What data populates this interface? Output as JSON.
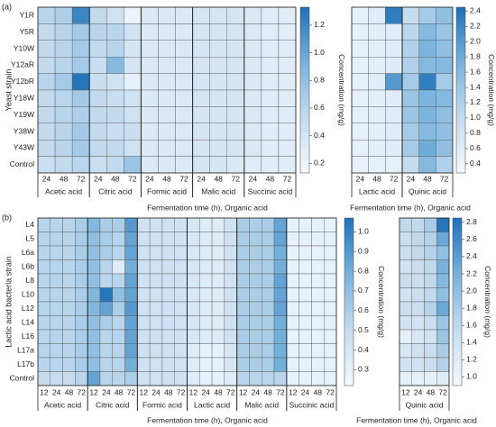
{
  "chart_data": [
    {
      "type": "heatmap",
      "panel": "(a)",
      "ylabel": "Yeast strain",
      "xlabel": "Fermentation time (h), Organic acid",
      "rows": [
        "Y1R",
        "Y5R",
        "Y10W",
        "Y12aR",
        "Y12bR",
        "Y18W",
        "Y19W",
        "Y38W",
        "Y43W",
        "Control"
      ],
      "groups": [
        {
          "name": "Acetic acid",
          "times": [
            24,
            48,
            72
          ]
        },
        {
          "name": "Citric acid",
          "times": [
            24,
            48,
            72
          ]
        },
        {
          "name": "Formic acid",
          "times": [
            24,
            48,
            72
          ]
        },
        {
          "name": "Malic acid",
          "times": [
            24,
            48,
            72
          ]
        },
        {
          "name": "Succinic acid",
          "times": [
            24,
            48,
            72
          ]
        }
      ],
      "values": [
        [
          0.6,
          0.65,
          1.2,
          0.55,
          0.45,
          0.2,
          0.35,
          0.35,
          0.35,
          0.4,
          0.4,
          0.4,
          0.35,
          0.3,
          0.3
        ],
        [
          0.55,
          0.6,
          0.7,
          0.6,
          0.6,
          0.45,
          0.35,
          0.35,
          0.35,
          0.4,
          0.4,
          0.4,
          0.35,
          0.3,
          0.3
        ],
        [
          0.55,
          0.6,
          0.7,
          0.55,
          0.6,
          0.4,
          0.35,
          0.35,
          0.35,
          0.4,
          0.4,
          0.4,
          0.35,
          0.3,
          0.3
        ],
        [
          0.55,
          0.6,
          0.7,
          0.5,
          0.85,
          0.4,
          0.35,
          0.35,
          0.35,
          0.4,
          0.4,
          0.4,
          0.35,
          0.3,
          0.3
        ],
        [
          0.6,
          0.7,
          1.3,
          0.5,
          0.45,
          0.25,
          0.35,
          0.35,
          0.35,
          0.4,
          0.4,
          0.4,
          0.35,
          0.3,
          0.3
        ],
        [
          0.55,
          0.6,
          0.7,
          0.55,
          0.5,
          0.45,
          0.35,
          0.35,
          0.35,
          0.4,
          0.4,
          0.4,
          0.35,
          0.3,
          0.3
        ],
        [
          0.55,
          0.6,
          0.65,
          0.55,
          0.55,
          0.45,
          0.35,
          0.35,
          0.35,
          0.4,
          0.4,
          0.4,
          0.35,
          0.3,
          0.3
        ],
        [
          0.55,
          0.6,
          0.7,
          0.55,
          0.5,
          0.5,
          0.35,
          0.35,
          0.35,
          0.4,
          0.4,
          0.4,
          0.35,
          0.3,
          0.3
        ],
        [
          0.55,
          0.6,
          0.7,
          0.55,
          0.55,
          0.45,
          0.35,
          0.35,
          0.35,
          0.4,
          0.4,
          0.4,
          0.35,
          0.3,
          0.3
        ],
        [
          0.5,
          0.55,
          0.6,
          0.5,
          0.55,
          0.75,
          0.35,
          0.35,
          0.35,
          0.4,
          0.4,
          0.35,
          0.3,
          0.3,
          0.3
        ]
      ],
      "colorbar_label": "Concentration (mg/g)",
      "clim": [
        0.13,
        1.33
      ],
      "cticks": [
        0.2,
        0.4,
        0.6,
        0.8,
        {
          "value": 1,
          "label": "1.0"
        },
        1.2
      ]
    },
    {
      "type": "heatmap",
      "xlabel": "Fermentation time (h), Organic acid",
      "groups": [
        {
          "name": "Lactic acid",
          "times": [
            24,
            48,
            72
          ]
        },
        {
          "name": "Quinic acid",
          "times": [
            24,
            48,
            72
          ]
        }
      ],
      "values": [
        [
          0.5,
          0.6,
          2.3,
          1.0,
          1.3,
          1.5
        ],
        [
          0.5,
          0.55,
          0.6,
          1.1,
          1.6,
          1.4
        ],
        [
          0.5,
          0.55,
          0.6,
          1.2,
          1.7,
          1.5
        ],
        [
          0.5,
          0.55,
          0.6,
          1.2,
          1.6,
          1.6
        ],
        [
          0.5,
          0.6,
          2.0,
          1.3,
          2.3,
          1.3
        ],
        [
          0.5,
          0.55,
          0.6,
          1.4,
          1.7,
          1.6
        ],
        [
          0.5,
          0.55,
          0.6,
          1.4,
          1.7,
          1.5
        ],
        [
          0.5,
          0.55,
          0.6,
          1.3,
          1.6,
          1.5
        ],
        [
          0.5,
          0.55,
          0.6,
          1.3,
          1.8,
          1.5
        ],
        [
          0.45,
          0.5,
          0.5,
          1.0,
          1.6,
          1.2
        ]
      ],
      "colorbar_label": "Concentration (mg/g)",
      "clim": [
        0.28,
        2.45
      ],
      "cticks": [
        0.4,
        0.6,
        0.8,
        {
          "value": 1,
          "label": "1.0"
        },
        1.2,
        1.4,
        1.6,
        1.8,
        {
          "value": 2,
          "label": "2.0"
        },
        2.2,
        2.4
      ]
    },
    {
      "type": "heatmap",
      "panel": "(b)",
      "ylabel": "Lactic acid bacteria strain",
      "xlabel": "Fermentation time (h), Organic acid",
      "rows": [
        "L4",
        "L5",
        "L6a",
        "L6b",
        "L8",
        "L10",
        "L12",
        "L14",
        "L16",
        "L17a",
        "L17b",
        "Control"
      ],
      "groups": [
        {
          "name": "Acetic acid",
          "times": [
            12,
            24,
            48,
            72
          ]
        },
        {
          "name": "Citric acid",
          "times": [
            12,
            24,
            48,
            72
          ]
        },
        {
          "name": "Formic acid",
          "times": [
            12,
            24,
            48,
            72
          ]
        },
        {
          "name": "Lactic acid",
          "times": [
            12,
            24,
            48,
            72
          ]
        },
        {
          "name": "Malic acid",
          "times": [
            12,
            24,
            48,
            72
          ]
        },
        {
          "name": "Succinic acid",
          "times": [
            12,
            24,
            48,
            72
          ]
        }
      ],
      "values": [
        [
          0.55,
          0.55,
          0.55,
          0.6,
          0.75,
          0.6,
          0.6,
          0.9,
          0.45,
          0.45,
          0.45,
          0.45,
          0.4,
          0.35,
          0.35,
          0.45,
          0.6,
          0.6,
          0.6,
          0.85,
          0.3,
          0.3,
          0.3,
          0.3
        ],
        [
          0.55,
          0.55,
          0.55,
          0.6,
          0.7,
          0.6,
          0.55,
          0.85,
          0.45,
          0.45,
          0.45,
          0.45,
          0.4,
          0.35,
          0.35,
          0.45,
          0.6,
          0.6,
          0.6,
          0.85,
          0.3,
          0.3,
          0.3,
          0.3
        ],
        [
          0.55,
          0.55,
          0.55,
          0.6,
          0.7,
          0.6,
          0.55,
          0.85,
          0.45,
          0.45,
          0.45,
          0.45,
          0.4,
          0.35,
          0.35,
          0.45,
          0.6,
          0.6,
          0.6,
          0.8,
          0.3,
          0.3,
          0.3,
          0.3
        ],
        [
          0.55,
          0.55,
          0.55,
          0.6,
          0.7,
          0.55,
          0.35,
          0.8,
          0.45,
          0.45,
          0.45,
          0.45,
          0.4,
          0.35,
          0.35,
          0.45,
          0.6,
          0.6,
          0.6,
          0.8,
          0.3,
          0.3,
          0.3,
          0.3
        ],
        [
          0.55,
          0.55,
          0.55,
          0.6,
          0.7,
          0.55,
          0.55,
          0.85,
          0.45,
          0.45,
          0.45,
          0.45,
          0.4,
          0.35,
          0.35,
          0.45,
          0.6,
          0.6,
          0.6,
          0.85,
          0.3,
          0.3,
          0.3,
          0.3
        ],
        [
          0.55,
          0.55,
          0.55,
          0.6,
          0.75,
          1.05,
          0.7,
          0.85,
          0.45,
          0.45,
          0.45,
          0.45,
          0.4,
          0.35,
          0.35,
          0.45,
          0.6,
          0.6,
          0.6,
          0.85,
          0.3,
          0.3,
          0.3,
          0.3
        ],
        [
          0.55,
          0.55,
          0.55,
          0.6,
          0.75,
          0.85,
          0.6,
          0.9,
          0.45,
          0.45,
          0.45,
          0.45,
          0.4,
          0.35,
          0.35,
          0.45,
          0.6,
          0.6,
          0.6,
          0.85,
          0.3,
          0.3,
          0.3,
          0.3
        ],
        [
          0.55,
          0.55,
          0.55,
          0.6,
          0.7,
          0.6,
          0.55,
          0.85,
          0.45,
          0.45,
          0.45,
          0.45,
          0.4,
          0.35,
          0.35,
          0.45,
          0.6,
          0.6,
          0.6,
          0.8,
          0.3,
          0.3,
          0.3,
          0.3
        ],
        [
          0.55,
          0.55,
          0.55,
          0.6,
          0.7,
          0.55,
          0.55,
          0.85,
          0.45,
          0.45,
          0.45,
          0.45,
          0.4,
          0.35,
          0.35,
          0.45,
          0.6,
          0.6,
          0.6,
          0.8,
          0.3,
          0.3,
          0.3,
          0.3
        ],
        [
          0.55,
          0.55,
          0.55,
          0.6,
          0.7,
          0.55,
          0.55,
          0.85,
          0.45,
          0.45,
          0.45,
          0.45,
          0.35,
          0.3,
          0.3,
          0.4,
          0.6,
          0.6,
          0.6,
          0.8,
          0.3,
          0.3,
          0.3,
          0.3
        ],
        [
          0.55,
          0.55,
          0.55,
          0.6,
          0.7,
          0.55,
          0.55,
          0.8,
          0.45,
          0.45,
          0.45,
          0.45,
          0.35,
          0.3,
          0.3,
          0.4,
          0.6,
          0.6,
          0.6,
          0.8,
          0.3,
          0.3,
          0.3,
          0.3
        ],
        [
          0.5,
          0.5,
          0.5,
          0.55,
          0.85,
          0.55,
          0.55,
          0.6,
          0.45,
          0.45,
          0.45,
          0.45,
          0.35,
          0.3,
          0.3,
          0.35,
          0.55,
          0.55,
          0.55,
          0.55,
          0.3,
          0.3,
          0.3,
          0.3
        ]
      ],
      "colorbar_label": "Concentration (mg/g)",
      "clim": [
        0.22,
        1.07
      ],
      "cticks": [
        0.3,
        0.4,
        0.5,
        0.6,
        0.7,
        0.8,
        0.9,
        {
          "value": 1,
          "label": "1.0"
        }
      ]
    },
    {
      "type": "heatmap",
      "xlabel": "Fermentation time (h), Organic acid",
      "groups": [
        {
          "name": "Quinic acid",
          "times": [
            12,
            24,
            48,
            72
          ]
        }
      ],
      "values": [
        [
          1.6,
          1.6,
          1.8,
          2.8
        ],
        [
          1.5,
          1.6,
          1.7,
          2.3
        ],
        [
          1.5,
          1.6,
          1.7,
          2.0
        ],
        [
          1.4,
          1.5,
          1.6,
          2.2
        ],
        [
          1.5,
          1.5,
          1.6,
          2.1
        ],
        [
          1.4,
          1.5,
          1.6,
          2.0
        ],
        [
          1.5,
          1.5,
          1.7,
          2.3
        ],
        [
          1.4,
          1.4,
          1.5,
          1.9
        ],
        [
          1.1,
          1.3,
          1.4,
          1.9
        ],
        [
          1.3,
          1.4,
          1.5,
          1.8
        ],
        [
          1.4,
          1.4,
          1.5,
          1.7
        ],
        [
          1.1,
          1.1,
          1.1,
          1.2
        ]
      ],
      "colorbar_label": "Concentration (mg/g)",
      "clim": [
        0.9,
        2.85
      ],
      "cticks": [
        {
          "value": 1,
          "label": "1.0"
        },
        1.2,
        1.4,
        1.6,
        1.8,
        {
          "value": 2,
          "label": "2.0"
        },
        2.2,
        2.4,
        2.6,
        2.8
      ]
    }
  ]
}
